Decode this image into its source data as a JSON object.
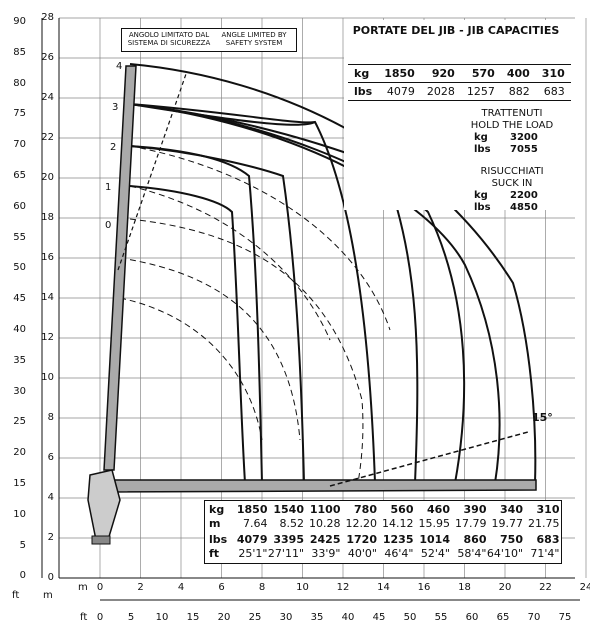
{
  "left_axis": {
    "ft_ticks": [
      "90",
      "85",
      "80",
      "75",
      "70",
      "65",
      "60",
      "55",
      "50",
      "45",
      "40",
      "35",
      "30",
      "25",
      "20",
      "15",
      "10",
      "5",
      "0"
    ],
    "m_ticks": [
      "28",
      "26",
      "24",
      "22",
      "20",
      "18",
      "16",
      "14",
      "12",
      "10",
      "8",
      "6",
      "4",
      "2",
      "0"
    ],
    "ft_unit": "ft",
    "m_unit": "m"
  },
  "bottom_axis": {
    "m_unit": "m",
    "ft_unit": "ft",
    "m_ticks": [
      "0",
      "2",
      "4",
      "6",
      "8",
      "10",
      "12",
      "14",
      "16",
      "18",
      "20",
      "22",
      "24"
    ],
    "ft_ticks": [
      "0",
      "5",
      "10",
      "15",
      "20",
      "25",
      "30",
      "35",
      "40",
      "45",
      "50",
      "55",
      "60",
      "65",
      "70",
      "75"
    ]
  },
  "notes": {
    "angle_it": "ANGOLO LIMITATO DAL SISTEMA DI SICUREZZA",
    "angle_en": "ANGLE LIMITED BY SAFETY SYSTEM"
  },
  "jib_labels": [
    "0",
    "1",
    "2",
    "3",
    "4"
  ],
  "angle_label": "15°",
  "jib_capacities": {
    "title": "PORTATE DEL JIB  -  JIB CAPACITIES",
    "kg_label": "kg",
    "lbs_label": "lbs",
    "kg": [
      "1850",
      "920",
      "570",
      "400",
      "310"
    ],
    "lbs": [
      "4079",
      "2028",
      "1257",
      "882",
      "683"
    ]
  },
  "hold_load": {
    "title_it": "TRATTENUTI",
    "title_en": "HOLD THE LOAD",
    "kg_label": "kg",
    "kg": "3200",
    "lbs_label": "lbs",
    "lbs": "7055"
  },
  "suck_in": {
    "title_it": "RISUCCHIATI",
    "title_en": "SUCK IN",
    "kg_label": "kg",
    "kg": "2200",
    "lbs_label": "lbs",
    "lbs": "4850"
  },
  "main_table": {
    "kg_label": "kg",
    "m_label": "m",
    "lbs_label": "lbs",
    "ft_label": "ft",
    "kg": [
      "1850",
      "1540",
      "1100",
      "780",
      "560",
      "460",
      "390",
      "340",
      "310"
    ],
    "m": [
      "7.64",
      "8.52",
      "10.28",
      "12.20",
      "14.12",
      "15.95",
      "17.79",
      "19.77",
      "21.75"
    ],
    "lbs": [
      "4079",
      "3395",
      "2425",
      "1720",
      "1235",
      "1014",
      "860",
      "750",
      "683"
    ],
    "ft": [
      "25'1\"",
      "27'11\"",
      "33'9\"",
      "40'0\"",
      "46'4\"",
      "52'4\"",
      "58'4\"",
      "64'10\"",
      "71'4\""
    ]
  }
}
